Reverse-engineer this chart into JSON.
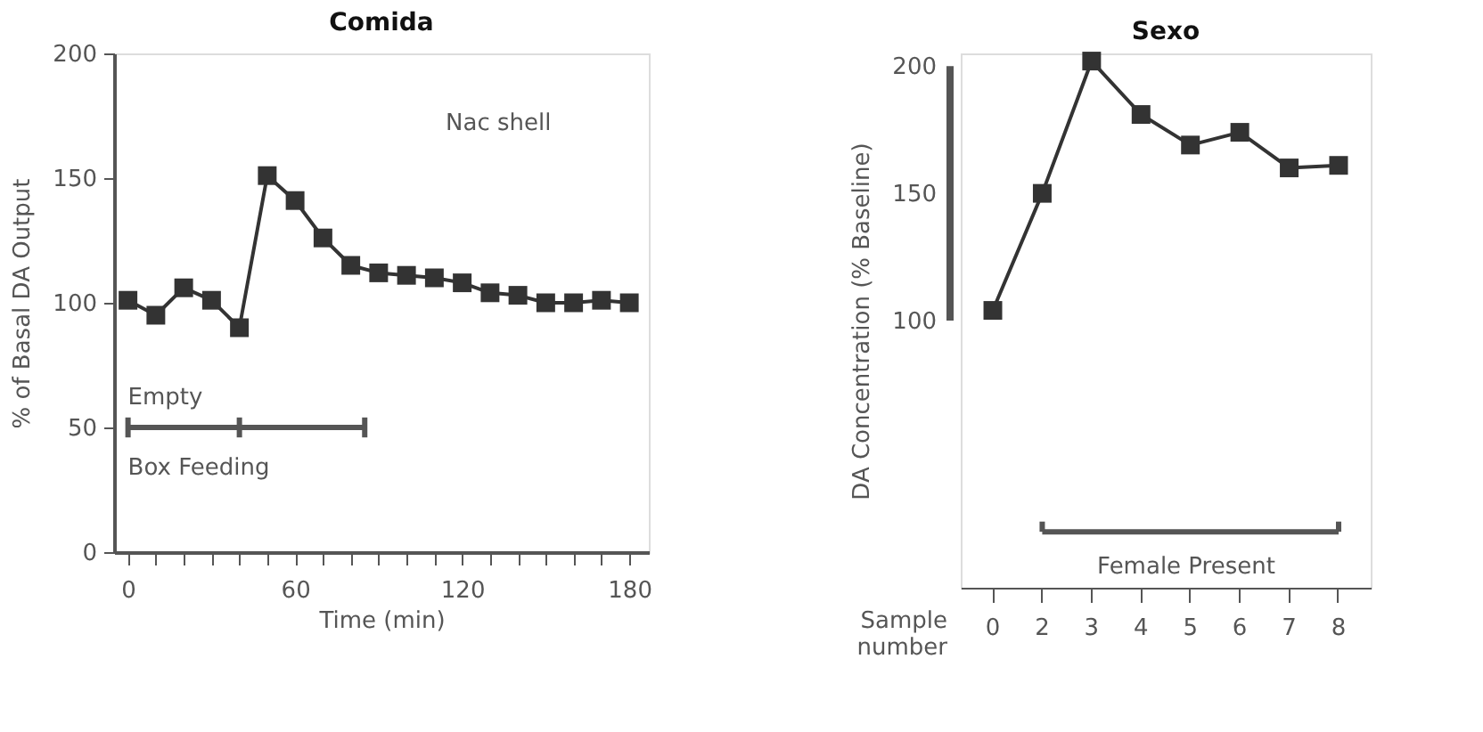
{
  "chart_data": [
    {
      "type": "line",
      "title": "Comida",
      "xlabel": "Time (min)",
      "ylabel": "% of Basal DA Output",
      "x": [
        0,
        10,
        20,
        30,
        40,
        50,
        60,
        70,
        80,
        90,
        100,
        110,
        120,
        130,
        140,
        150,
        160,
        170,
        180
      ],
      "series": [
        {
          "color": "#333333",
          "marker": "square",
          "values": [
            101,
            95,
            106,
            101,
            90,
            151,
            141,
            126,
            115,
            112,
            111,
            110,
            108,
            104,
            103,
            100,
            100,
            101,
            100
          ]
        },
        {
          "color": "#555555",
          "marker": "none",
          "x": [
            0,
            40,
            85
          ],
          "values": [
            50,
            50,
            50
          ],
          "errors": [
            4,
            4,
            4
          ]
        }
      ],
      "xlim": [
        -5,
        187
      ],
      "ylim": [
        0,
        200
      ],
      "xticks": [
        0,
        {
          "value": 10,
          "label": null
        },
        {
          "value": 20,
          "label": null
        },
        {
          "value": 30,
          "label": null
        },
        {
          "value": 40,
          "label": null
        },
        {
          "value": 50,
          "label": null
        },
        60,
        {
          "value": 70,
          "label": null
        },
        {
          "value": 80,
          "label": null
        },
        {
          "value": 90,
          "label": null
        },
        {
          "value": 100,
          "label": null
        },
        {
          "value": 110,
          "label": null
        },
        120,
        {
          "value": 130,
          "label": null
        },
        {
          "value": 140,
          "label": null
        },
        {
          "value": 150,
          "label": null
        },
        {
          "value": 160,
          "label": null
        },
        {
          "value": 170,
          "label": null
        },
        180
      ],
      "yticks": [
        0,
        50,
        100,
        150,
        200
      ],
      "grid": false,
      "annotations": [
        "Nac shell",
        "Empty",
        "Box Feeding"
      ]
    },
    {
      "type": "line",
      "title": "Sexo",
      "xlabel": "Sample number",
      "ylabel": "DA Concentration (% Baseline)",
      "categories": [
        "0",
        "2",
        "3",
        "4",
        "5",
        "6",
        "7",
        "8"
      ],
      "series": [
        {
          "color": "#333333",
          "marker": "square",
          "values": [
            104,
            150,
            202,
            181,
            169,
            174,
            160,
            161
          ]
        },
        {
          "color": "#555555",
          "marker": "none",
          "x": [
            "2",
            "8"
          ],
          "values": [
            17,
            17
          ],
          "errors": [
            [
              17,
              21
            ],
            [
              17,
              21
            ]
          ]
        }
      ],
      "ylim": [
        -5,
        205
      ],
      "yticks": [
        100,
        150,
        200
      ],
      "grid": false,
      "annotations": [
        "Female Present"
      ]
    }
  ]
}
